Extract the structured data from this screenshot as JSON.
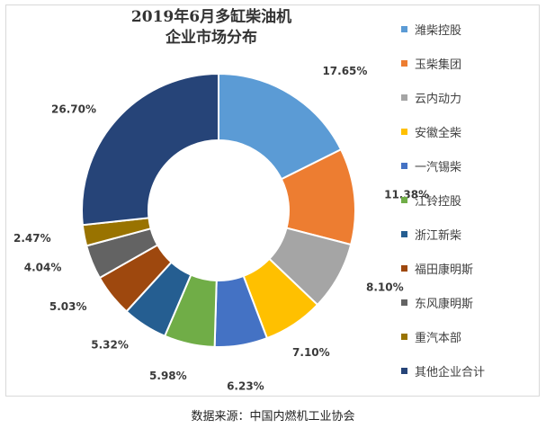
{
  "chart_data": {
    "type": "pie",
    "title": "2019年6月多缸柴油机",
    "subtitle": "企业市场分布",
    "donut": true,
    "categories": [
      "潍柴控股",
      "玉柴集团",
      "云内动力",
      "安徽全柴",
      "一汽锡柴",
      "江铃控股",
      "浙江新柴",
      "福田康明斯",
      "东风康明斯",
      "重汽本部",
      "其他企业合计"
    ],
    "values": [
      17.65,
      11.38,
      8.1,
      7.1,
      6.23,
      5.98,
      5.32,
      5.03,
      4.04,
      2.47,
      26.7
    ],
    "value_labels": [
      "17.65%",
      "11.38%",
      "8.10%",
      "7.10%",
      "6.23%",
      "5.98%",
      "5.32%",
      "5.03%",
      "4.04%",
      "2.47%",
      "26.70%"
    ],
    "colors": [
      "#5B9BD5",
      "#ED7D31",
      "#A5A5A5",
      "#FFC000",
      "#4472C4",
      "#70AD47",
      "#255E91",
      "#9E480E",
      "#636363",
      "#997300",
      "#264478"
    ],
    "legend_position": "right"
  },
  "source_note": "数据来源：中国内燃机工业协会"
}
